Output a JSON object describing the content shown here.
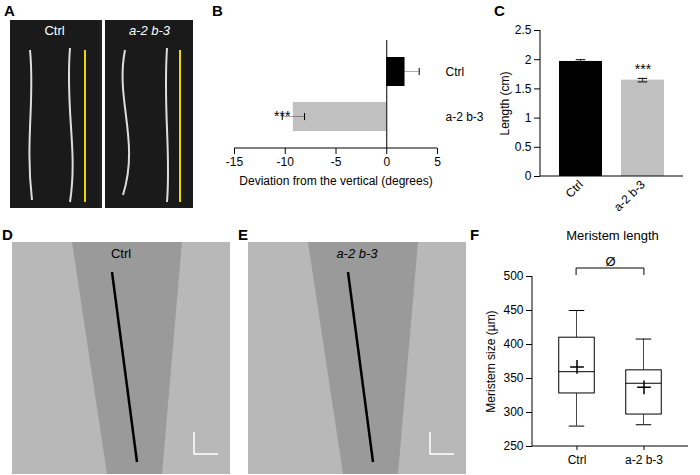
{
  "chart_data": [
    {
      "panel": "B",
      "type": "bar",
      "orientation": "horizontal",
      "categories": [
        "Ctrl",
        "a-2 b-3"
      ],
      "values": [
        1.8,
        -9.2
      ],
      "errors": [
        1.4,
        1.1
      ],
      "colors": [
        "#000000",
        "#c0c0c0"
      ],
      "xlabel": "Deviation from the vertical (degrees)",
      "xlim": [
        -15,
        5
      ],
      "xticks": [
        -15,
        -10,
        -5,
        0,
        5
      ],
      "significance": [
        {
          "category": "a-2 b-3",
          "label": "***"
        }
      ]
    },
    {
      "panel": "C",
      "type": "bar",
      "categories": [
        "Ctrl",
        "a-2 b-3"
      ],
      "values": [
        1.97,
        1.65
      ],
      "errors": [
        0.03,
        0.03
      ],
      "colors": [
        "#000000",
        "#c0c0c0"
      ],
      "ylabel": "Length (cm)",
      "ylim": [
        0,
        2.5
      ],
      "yticks": [
        0,
        0.5,
        1,
        1.5,
        2,
        2.5
      ],
      "significance": [
        {
          "category": "a-2 b-3",
          "label": "***"
        }
      ]
    },
    {
      "panel": "F",
      "type": "box",
      "title": "Meristem length",
      "ylabel": "Meristem size (µm)",
      "categories": [
        "Ctrl",
        "a-2 b-3"
      ],
      "min": [
        280,
        282
      ],
      "q1": [
        328,
        297
      ],
      "median": [
        360,
        343
      ],
      "q3": [
        410,
        362
      ],
      "max": [
        450,
        408
      ],
      "mean": [
        367,
        337
      ],
      "marker": "plus",
      "ylim": [
        250,
        500
      ],
      "yticks": [
        250,
        300,
        350,
        400,
        450,
        500
      ],
      "comparison": {
        "categories": [
          "Ctrl",
          "a-2 b-3"
        ],
        "label": "Ø"
      }
    }
  ],
  "images": [
    {
      "panel": "A",
      "labels": [
        "Ctrl",
        "a-2 b-3"
      ]
    },
    {
      "panel": "D",
      "labels": [
        "Ctrl"
      ]
    },
    {
      "panel": "E",
      "labels": [
        "a-2 b-3"
      ]
    }
  ]
}
